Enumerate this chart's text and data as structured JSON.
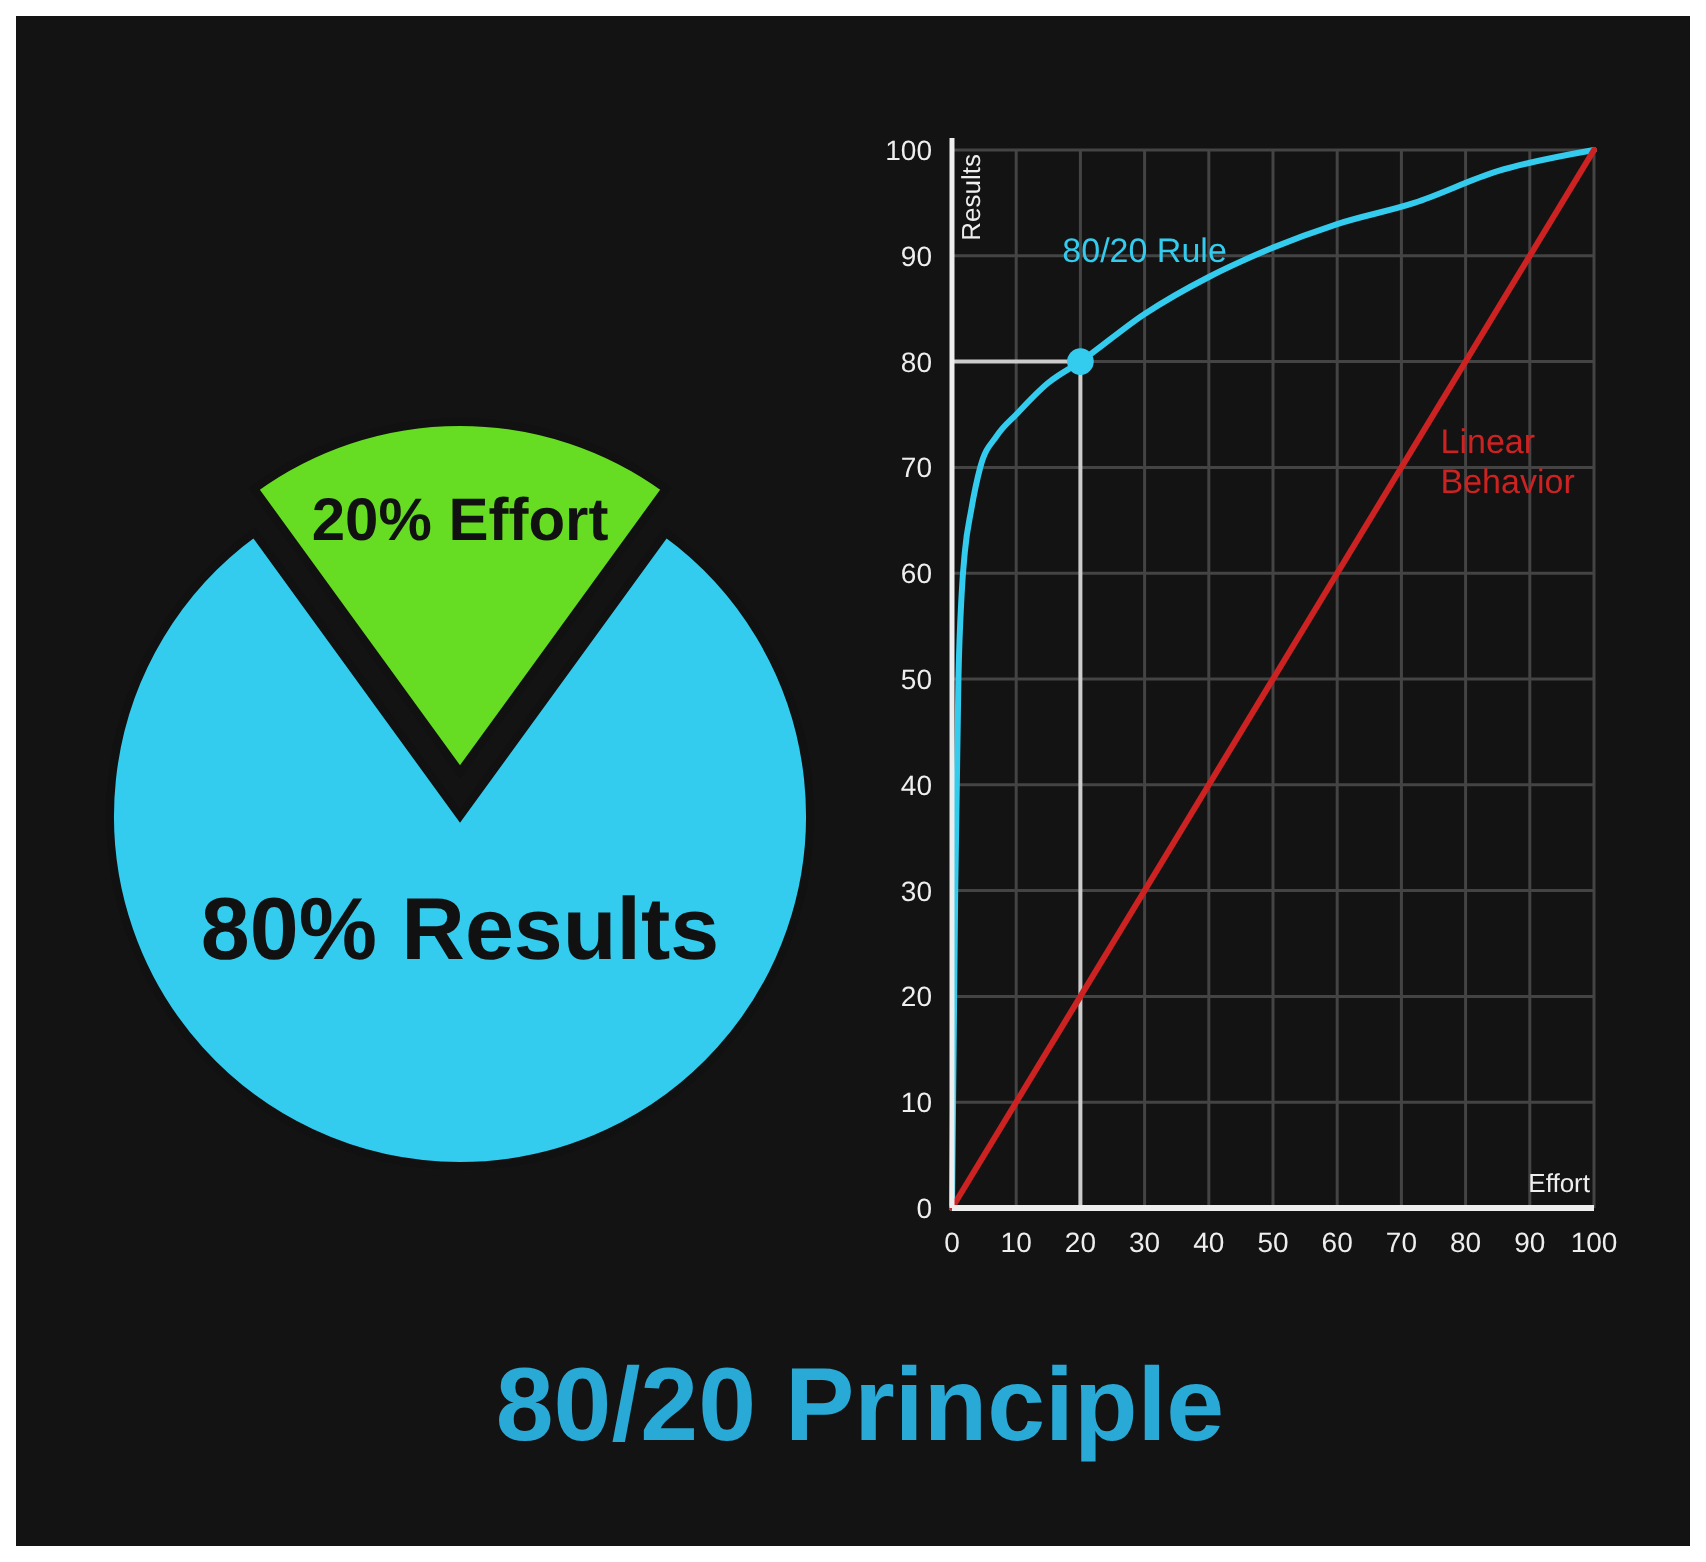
{
  "chart_data": [
    {
      "type": "pie",
      "title": "80/20 Principle",
      "categories": [
        "20% Effort",
        "80% Results"
      ],
      "values": [
        20,
        80
      ],
      "colors": [
        "#66dd22",
        "#33ccee"
      ]
    },
    {
      "type": "line",
      "xlabel": "Effort",
      "ylabel": "Results",
      "xlim": [
        0,
        100
      ],
      "ylim": [
        0,
        100
      ],
      "xticks": [
        0,
        10,
        20,
        30,
        40,
        50,
        60,
        70,
        80,
        90,
        100
      ],
      "yticks": [
        0,
        10,
        20,
        30,
        40,
        50,
        60,
        70,
        80,
        90,
        100
      ],
      "grid": true,
      "line_style": "solid",
      "marker": "none",
      "series": [
        {
          "name": "80/20 Rule",
          "color": "#33ccee",
          "x": [
            0,
            0.5,
            1,
            1.5,
            2,
            3,
            4.4,
            7,
            10,
            15,
            20,
            30,
            40,
            47,
            60,
            72,
            85,
            100
          ],
          "values": [
            0,
            30,
            50,
            58,
            62,
            66,
            70,
            73,
            75,
            78,
            80,
            84.5,
            88,
            90,
            93,
            95,
            98,
            100
          ]
        },
        {
          "name": "Linear Behavior",
          "color": "#cc2222",
          "x": [
            0,
            100
          ],
          "values": [
            0,
            100
          ]
        },
        {
          "type": "scatter",
          "color": "#33ccee",
          "marker": "circle",
          "x": [
            20
          ],
          "values": [
            80
          ]
        }
      ],
      "ref_lines": [
        {
          "axis": "x",
          "value": 20,
          "color": "#cccccc"
        },
        {
          "axis": "y",
          "value": 80,
          "color": "#cccccc"
        }
      ]
    }
  ]
}
